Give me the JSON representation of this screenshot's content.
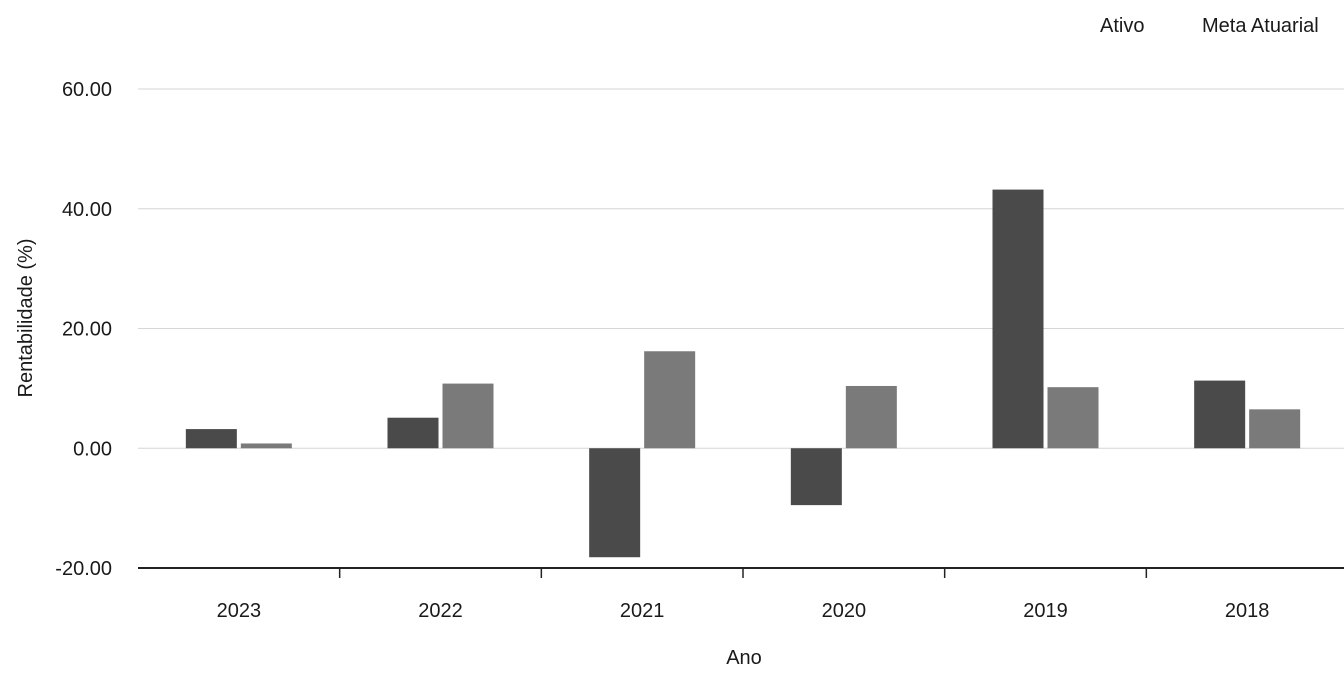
{
  "chart_data": {
    "type": "bar",
    "categories": [
      "2023",
      "2022",
      "2021",
      "2020",
      "2019",
      "2018"
    ],
    "series": [
      {
        "name": "Ativo",
        "values": [
          3.2,
          5.1,
          -18.2,
          -9.5,
          43.2,
          11.3
        ],
        "color": "#4a4a4a"
      },
      {
        "name": "Meta Atuarial",
        "values": [
          0.8,
          10.8,
          16.2,
          10.4,
          10.2,
          6.5
        ],
        "color": "#7a7a7a"
      }
    ],
    "title": "",
    "xlabel": "Ano",
    "ylabel": "Rentabilidade (%)",
    "ylim": [
      -20,
      60
    ],
    "yticks": [
      "-20.00",
      "0.00",
      "20.00",
      "40.00",
      "60.00"
    ],
    "grid": true,
    "legend_position": "top-right"
  }
}
